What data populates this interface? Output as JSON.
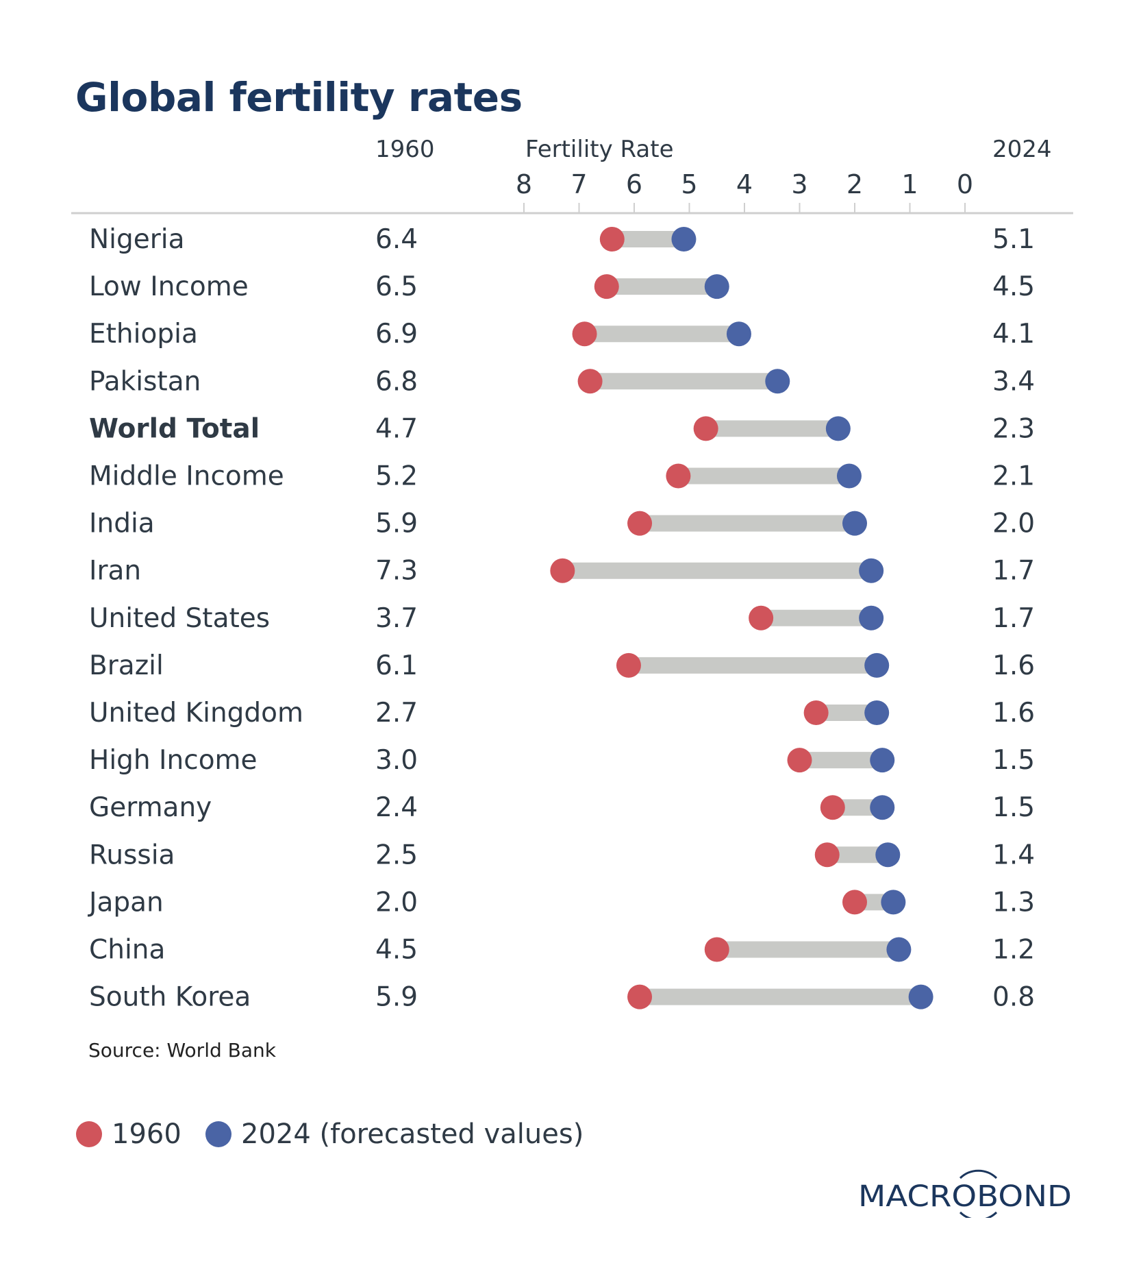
{
  "title": "Global fertility rates",
  "headers": {
    "left": "1960",
    "center": "Fertility Rate",
    "right": "2024"
  },
  "source": "Source: World Bank",
  "legend": [
    {
      "label": "1960",
      "color": "#d0545b"
    },
    {
      "label": "2024 (forecasted values)",
      "color": "#4a64a5"
    }
  ],
  "logo": "MACROBOND",
  "colors": {
    "v1960": "#d0545b",
    "v2024": "#4a64a5",
    "bar": "#c8c9c6",
    "axis": "#cfcfcf"
  },
  "chart_data": {
    "type": "dumbbell",
    "title": "Global fertility rates",
    "xlabel": "Fertility Rate",
    "xlim": [
      8,
      0
    ],
    "ticks": [
      "8",
      "7",
      "6",
      "5",
      "4",
      "3",
      "2",
      "1",
      "0"
    ],
    "series": [
      {
        "name": "1960"
      },
      {
        "name": "2024 (forecasted values)"
      }
    ],
    "rows": [
      {
        "label": "Nigeria",
        "v1960": "6.4",
        "v2024": "5.1"
      },
      {
        "label": "Low Income",
        "v1960": "6.5",
        "v2024": "4.5"
      },
      {
        "label": "Ethiopia",
        "v1960": "6.9",
        "v2024": "4.1"
      },
      {
        "label": "Pakistan",
        "v1960": "6.8",
        "v2024": "3.4"
      },
      {
        "label": "World Total",
        "v1960": "4.7",
        "v2024": "2.3",
        "bold": true
      },
      {
        "label": "Middle Income",
        "v1960": "5.2",
        "v2024": "2.1"
      },
      {
        "label": "India",
        "v1960": "5.9",
        "v2024": "2.0"
      },
      {
        "label": "Iran",
        "v1960": "7.3",
        "v2024": "1.7"
      },
      {
        "label": "United States",
        "v1960": "3.7",
        "v2024": "1.7"
      },
      {
        "label": "Brazil",
        "v1960": "6.1",
        "v2024": "1.6"
      },
      {
        "label": "United Kingdom",
        "v1960": "2.7",
        "v2024": "1.6"
      },
      {
        "label": "High Income",
        "v1960": "3.0",
        "v2024": "1.5"
      },
      {
        "label": "Germany",
        "v1960": "2.4",
        "v2024": "1.5"
      },
      {
        "label": "Russia",
        "v1960": "2.5",
        "v2024": "1.4"
      },
      {
        "label": "Japan",
        "v1960": "2.0",
        "v2024": "1.3"
      },
      {
        "label": "China",
        "v1960": "4.5",
        "v2024": "1.2"
      },
      {
        "label": "South Korea",
        "v1960": "5.9",
        "v2024": "0.8"
      }
    ]
  }
}
